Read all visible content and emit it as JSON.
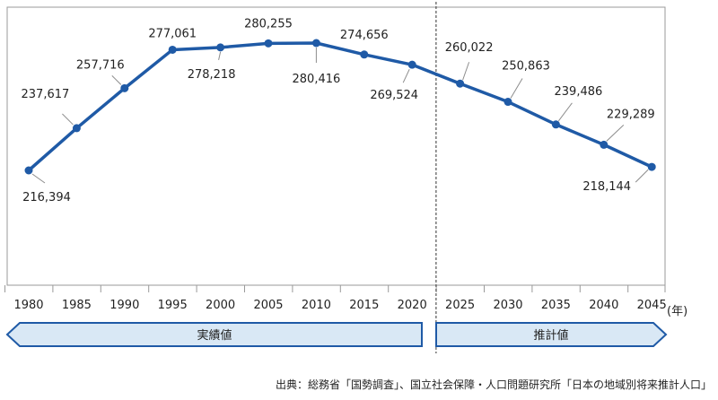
{
  "chart_data": {
    "type": "line",
    "x": [
      "1980",
      "1985",
      "1990",
      "1995",
      "2000",
      "2005",
      "2010",
      "2015",
      "2020",
      "2025",
      "2030",
      "2035",
      "2040",
      "2045"
    ],
    "values": [
      216394,
      237617,
      257716,
      277061,
      278218,
      280255,
      280416,
      274656,
      269524,
      260022,
      250863,
      239486,
      229289,
      218144
    ],
    "data_labels": [
      "216,394",
      "237,617",
      "257,716",
      "277,061",
      "278,218",
      "280,255",
      "280,416",
      "274,656",
      "269,524",
      "260,022",
      "250,863",
      "239,486",
      "229,289",
      "218,144"
    ],
    "x_unit": "(年)",
    "ylim": [
      180000,
      290000
    ],
    "grid": false,
    "line_color": "#1F5AA6",
    "divider_after": "2020",
    "periods": [
      {
        "label": "実績値",
        "from": "1980",
        "to": "2020"
      },
      {
        "label": "推計値",
        "from": "2025",
        "to": "2045"
      }
    ]
  },
  "colors": {
    "line": "#1F5AA6",
    "banner_fill": "#D9E8F5",
    "banner_stroke": "#1F5AA6",
    "frame": "#9A9A9A",
    "leader": "#8C8C8C"
  },
  "source": "出典：総務省「国勢調査」、国立社会保障・人口問題研究所「日本の地域別将来推計人口」"
}
